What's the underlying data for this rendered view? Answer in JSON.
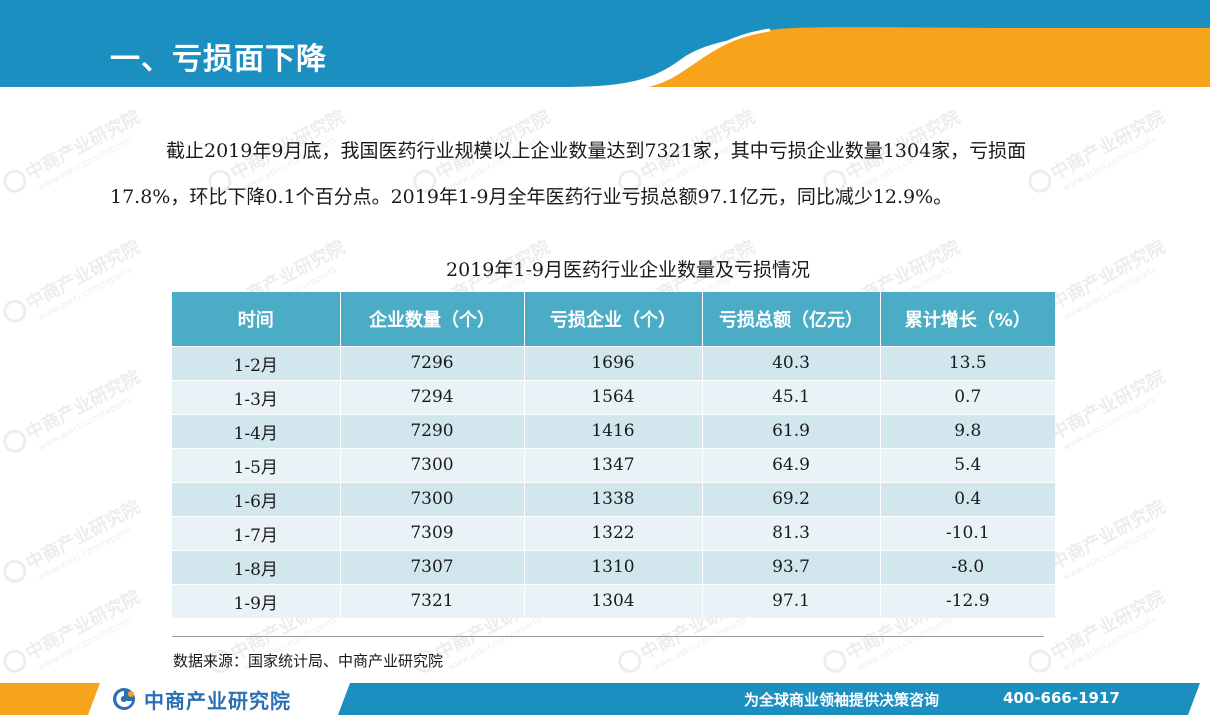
{
  "header": {
    "title": "一、亏损面下降"
  },
  "paragraph": "截止2019年9月底，我国医药行业规模以上企业数量达到7321家，其中亏损企业数量1304家，亏损面17.8%，环比下降0.1个百分点。2019年1-9月全年医药行业亏损总额97.1亿元，同比减少12.9%。",
  "table": {
    "title": "2019年1-9月医药行业企业数量及亏损情况",
    "headers": [
      "时间",
      "企业数量（个）",
      "亏损企业（个）",
      "亏损总额（亿元）",
      "累计增长（%）"
    ],
    "rows": [
      [
        "1-2月",
        "7296",
        "1696",
        "40.3",
        "13.5"
      ],
      [
        "1-3月",
        "7294",
        "1564",
        "45.1",
        "0.7"
      ],
      [
        "1-4月",
        "7290",
        "1416",
        "61.9",
        "9.8"
      ],
      [
        "1-5月",
        "7300",
        "1347",
        "64.9",
        "5.4"
      ],
      [
        "1-6月",
        "7300",
        "1338",
        "69.2",
        "0.4"
      ],
      [
        "1-7月",
        "7309",
        "1322",
        "81.3",
        "-10.1"
      ],
      [
        "1-8月",
        "7307",
        "1310",
        "93.7",
        "-8.0"
      ],
      [
        "1-9月",
        "7321",
        "1304",
        "97.1",
        "-12.9"
      ]
    ]
  },
  "source": "数据来源：国家统计局、中商产业研究院",
  "footer": {
    "logo_text": "中商产业研究院",
    "slogan": "为全球商业领袖提供决策咨询",
    "phone": "400-666-1917"
  },
  "watermark": {
    "text": "中商产业研究院",
    "subtext": "www.askci.com/reports"
  },
  "colors": {
    "header_blue": "#1b8fc0",
    "header_orange": "#f7a41c",
    "table_header": "#4bacc6",
    "row_odd": "#d2e6ee",
    "row_even": "#e9f2f6",
    "logo_blue": "#2b6fb4"
  }
}
